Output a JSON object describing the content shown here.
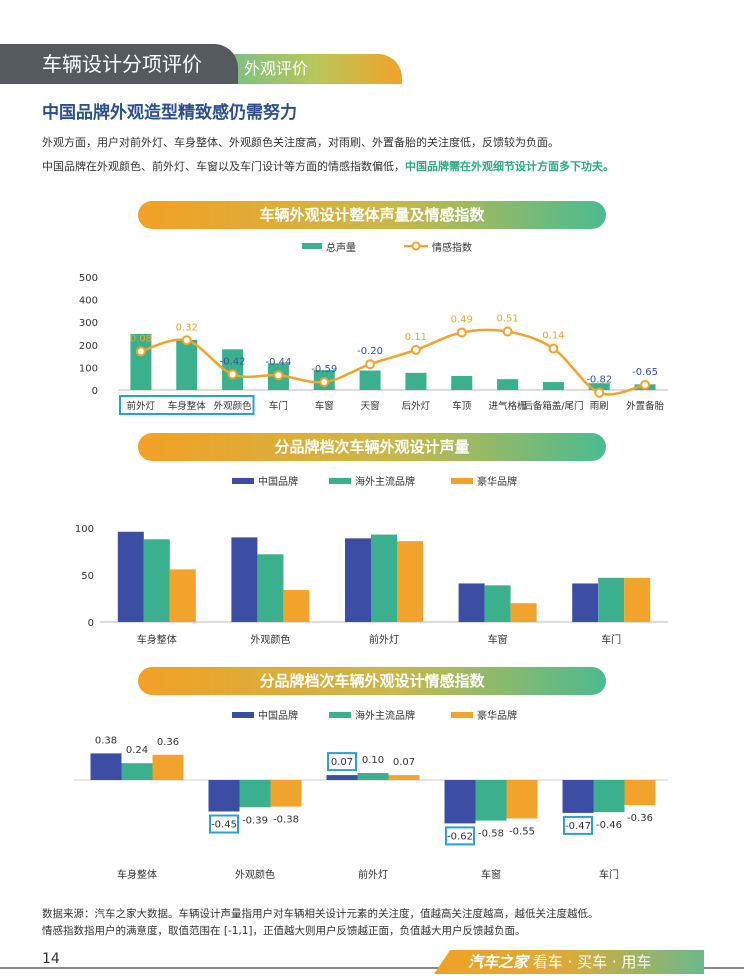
{
  "header": {
    "section": "车辆设计分项评价",
    "subsection": "外观评价"
  },
  "headline": "中国品牌外观造型精致感仍需努力",
  "para1": "外观方面，用户对前外灯、车身整体、外观颜色关注度高，对雨刷、外置备胎的关注度低，反馈较为负面。",
  "para2_normal": "中国品牌在外观颜色、前外灯、车窗以及车门设计等方面的情感指数偏低，",
  "para2_highlight": "中国品牌需在外观细节设计方面多下功夫。",
  "footnote1": "数据来源：汽车之家大数据。车辆设计声量指用户对车辆相关设计元素的关注度，值越高关注度越高，越低关注度越低。",
  "footnote2": "情感指数指用户的满意度，取值范围在 [-1,1]，正值越大则用户反馈越正面，负值越大用户反馈越负面。",
  "page_number": "14",
  "brand": {
    "name": "汽车之家",
    "slogan": "看车 · 买车 · 用车"
  },
  "colors": {
    "green": "#3ab08f",
    "orange": "#f2a32c",
    "blue": "#3c4ea3",
    "highlight_box": "#2a9fd8"
  },
  "chart_data": [
    {
      "type": "bar+line",
      "title": "车辆外观设计整体声量及情感指数",
      "legend": [
        "总声量",
        "情感指数"
      ],
      "legend_placement": "top-center",
      "categories": [
        "前外灯",
        "车身整体",
        "外观颜色",
        "车门",
        "车窗",
        "天窗",
        "后外灯",
        "车顶",
        "进气格栅",
        "后备箱盖/尾门",
        "雨刷",
        "外置备胎"
      ],
      "bar_values": [
        248,
        222,
        180,
        118,
        88,
        86,
        76,
        62,
        48,
        35,
        30,
        25
      ],
      "line_values": [
        0.08,
        0.32,
        -0.42,
        -0.44,
        -0.59,
        -0.2,
        0.11,
        0.49,
        0.51,
        0.14,
        -0.82,
        -0.65
      ],
      "line_labels": [
        "0.08",
        "0.32",
        "-0.42",
        "-0.44",
        "-0.59",
        "-0.20",
        "0.11",
        "0.49",
        "0.51",
        "0.14",
        "-0.82",
        "-0.65"
      ],
      "y_ticks": [
        "0",
        "100",
        "200",
        "300",
        "400",
        "500"
      ],
      "ylim": [
        0,
        500
      ],
      "highlighted_categories": [
        0,
        1,
        2
      ]
    },
    {
      "type": "bar",
      "title": "分品牌档次车辆外观设计声量",
      "legend_placement": "top-center",
      "categories": [
        "车身整体",
        "外观颜色",
        "前外灯",
        "车窗",
        "车门"
      ],
      "series": [
        {
          "name": "中国品牌",
          "values": [
            96,
            90,
            89,
            41,
            41
          ]
        },
        {
          "name": "海外主流品牌",
          "values": [
            88,
            72,
            93,
            39,
            47
          ]
        },
        {
          "name": "豪华品牌",
          "values": [
            56,
            34,
            86,
            20,
            47
          ]
        }
      ],
      "y_ticks": [
        "0",
        "50",
        "100"
      ],
      "ylim": [
        0,
        100
      ]
    },
    {
      "type": "bar",
      "title": "分品牌档次车辆外观设计情感指数",
      "legend_placement": "top-center",
      "categories": [
        "车身整体",
        "外观颜色",
        "前外灯",
        "车窗",
        "车门"
      ],
      "series": [
        {
          "name": "中国品牌",
          "values": [
            0.38,
            -0.45,
            0.07,
            -0.62,
            -0.47
          ],
          "labels": [
            "0.38",
            "-0.45",
            "0.07",
            "-0.62",
            "-0.47"
          ]
        },
        {
          "name": "海外主流品牌",
          "values": [
            0.24,
            -0.39,
            0.1,
            -0.58,
            -0.46
          ],
          "labels": [
            "0.24",
            "-0.39",
            "0.10",
            "-0.58",
            "-0.46"
          ]
        },
        {
          "name": "豪华品牌",
          "values": [
            0.36,
            -0.38,
            0.07,
            -0.55,
            -0.36
          ],
          "labels": [
            "0.36",
            "-0.38",
            "0.07",
            "-0.55",
            "-0.36"
          ]
        }
      ],
      "highlighted_labels": [
        [
          0,
          1
        ],
        [
          0,
          2
        ],
        [
          0,
          3
        ],
        [
          0,
          4
        ]
      ]
    }
  ]
}
